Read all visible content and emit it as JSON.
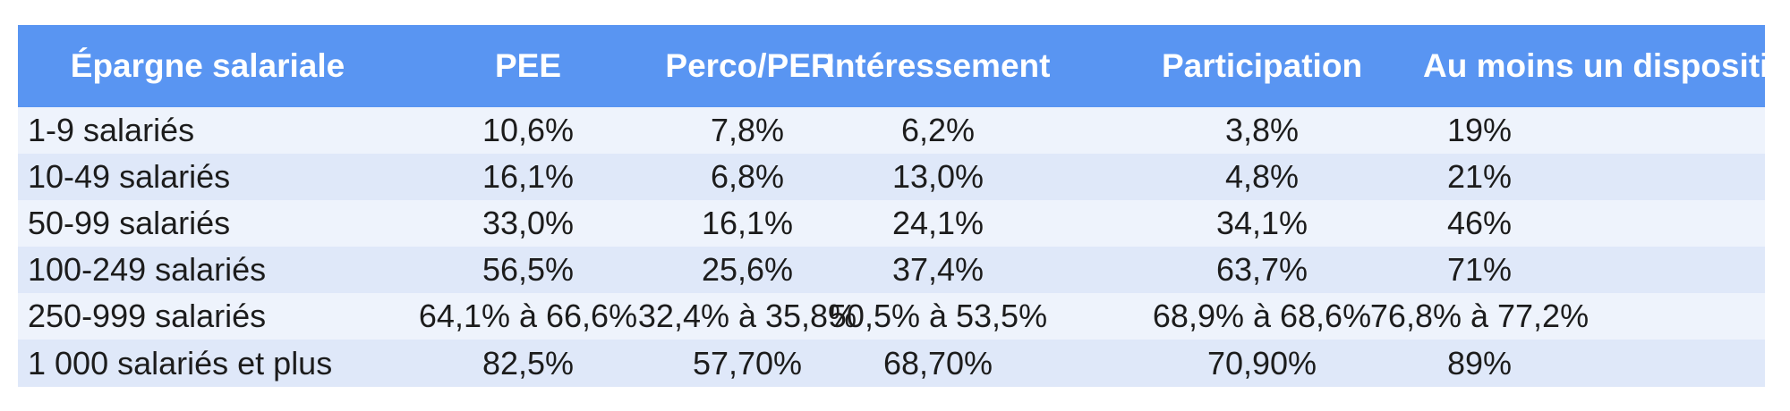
{
  "table": {
    "columns": [
      "Épargne salariale",
      "PEE",
      "Perco/PER",
      "Intéressement",
      "Participation",
      "Au moins un dispositif"
    ],
    "rows": [
      {
        "label": "1-9 salariés",
        "values": [
          "10,6%",
          "7,8%",
          "6,2%",
          "3,8%",
          "19%"
        ]
      },
      {
        "label": "10-49 salariés",
        "values": [
          "16,1%",
          "6,8%",
          "13,0%",
          "4,8%",
          "21%"
        ]
      },
      {
        "label": "50-99 salariés",
        "values": [
          "33,0%",
          "16,1%",
          "24,1%",
          "34,1%",
          "46%"
        ]
      },
      {
        "label": "100-249 salariés",
        "values": [
          "56,5%",
          "25,6%",
          "37,4%",
          "63,7%",
          "71%"
        ]
      },
      {
        "label": "250-999 salariés",
        "values": [
          "64,1% à 66,6%",
          "32,4% à 35,8%",
          "50,5% à 53,5%",
          "68,9% à 68,6%",
          "76,8% à 77,2%"
        ]
      },
      {
        "label": "1 000 salariés et plus",
        "values": [
          "82,5%",
          "57,70%",
          "68,70%",
          "70,90%",
          "89%"
        ]
      }
    ],
    "colors": {
      "header_bg": "#5995f2",
      "header_text": "#ffffff",
      "row_light": "#eef3fc",
      "row_dark": "#dfe8f9",
      "body_text": "#1c1c1c"
    }
  },
  "chart_data": {
    "type": "table",
    "title": "Épargne salariale",
    "columns": [
      "Épargne salariale",
      "PEE",
      "Perco/PER",
      "Intéressement",
      "Participation",
      "Au moins un dispositif"
    ],
    "categories": [
      "1-9 salariés",
      "10-49 salariés",
      "50-99 salariés",
      "100-249 salariés",
      "250-999 salariés",
      "1 000 salariés et plus"
    ],
    "series": [
      {
        "name": "PEE",
        "values": [
          "10,6%",
          "16,1%",
          "33,0%",
          "56,5%",
          "64,1% à 66,6%",
          "82,5%"
        ]
      },
      {
        "name": "Perco/PER",
        "values": [
          "7,8%",
          "6,8%",
          "16,1%",
          "25,6%",
          "32,4% à 35,8%",
          "57,70%"
        ]
      },
      {
        "name": "Intéressement",
        "values": [
          "6,2%",
          "13,0%",
          "24,1%",
          "37,4%",
          "50,5% à 53,5%",
          "68,70%"
        ]
      },
      {
        "name": "Participation",
        "values": [
          "3,8%",
          "4,8%",
          "34,1%",
          "63,7%",
          "68,9% à 68,6%",
          "70,90%"
        ]
      },
      {
        "name": "Au moins un dispositif",
        "values": [
          "19%",
          "21%",
          "46%",
          "71%",
          "76,8% à 77,2%",
          "89%"
        ]
      }
    ]
  }
}
